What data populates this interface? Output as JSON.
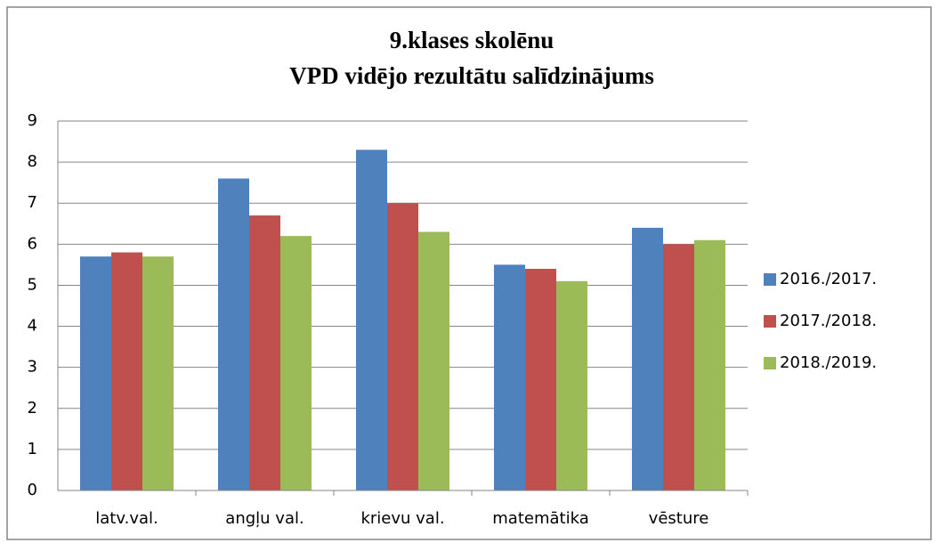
{
  "chart_data": {
    "type": "bar",
    "title": [
      "9.klases skolēnu",
      "VPD vidējo rezultātu salīdzinājums"
    ],
    "categories": [
      "latv.val.",
      "angļu val.",
      "krievu val.",
      "matemātika",
      "vēsture"
    ],
    "series": [
      {
        "name": "2016./2017.",
        "color": "#4f81bd",
        "values": [
          5.7,
          7.6,
          8.3,
          5.5,
          6.4
        ]
      },
      {
        "name": "2017./2018.",
        "color": "#c0504d",
        "values": [
          5.8,
          6.7,
          7.0,
          5.4,
          6.0
        ]
      },
      {
        "name": "2018./2019.",
        "color": "#9bbb59",
        "values": [
          5.7,
          6.2,
          6.3,
          5.1,
          6.1
        ]
      }
    ],
    "ylim": [
      0,
      9
    ],
    "yticks": [
      0,
      1,
      2,
      3,
      4,
      5,
      6,
      7,
      8,
      9
    ],
    "grid": true,
    "legend": "right"
  }
}
